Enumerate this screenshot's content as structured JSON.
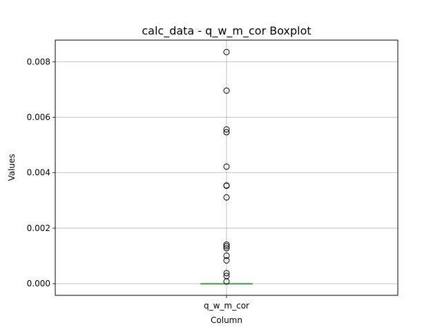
{
  "chart_data": {
    "type": "box",
    "title": "calc_data - q_w_m_cor Boxplot",
    "xlabel": "Column",
    "ylabel": "Values",
    "categories": [
      "q_w_m_cor"
    ],
    "ylim": [
      -0.00042,
      0.00878
    ],
    "yticks": [
      0.0,
      0.002,
      0.004,
      0.006,
      0.008
    ],
    "ytick_labels": [
      "0.000",
      "0.002",
      "0.004",
      "0.006",
      "0.008"
    ],
    "grid": true,
    "box": {
      "min": 0.0,
      "q1": 0.0,
      "median": 0.0,
      "q3": 0.0,
      "max": 0.0
    },
    "outliers": [
      0.00835,
      0.00696,
      0.00556,
      0.00546,
      0.00422,
      0.00354,
      0.00353,
      0.00311,
      0.00141,
      0.00135,
      0.00128,
      0.00101,
      0.00084,
      0.00038,
      0.00028,
      8e-05
    ],
    "colors": {
      "median": "#2ca02c",
      "grid": "#b0b0b0",
      "marker": "#000000"
    }
  }
}
